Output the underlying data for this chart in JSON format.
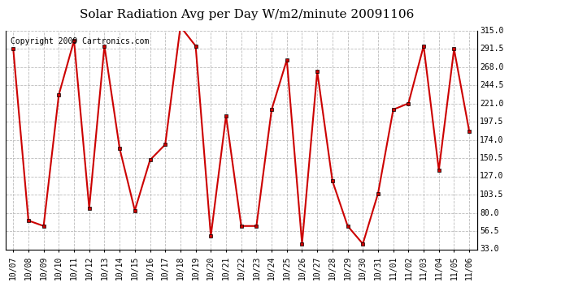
{
  "title": "Solar Radiation Avg per Day W/m2/minute 20091106",
  "copyright": "Copyright 2009 Cartronics.com",
  "dates": [
    "10/07",
    "10/08",
    "10/09",
    "10/10",
    "10/11",
    "10/12",
    "10/13",
    "10/14",
    "10/15",
    "10/16",
    "10/17",
    "10/18",
    "10/19",
    "10/20",
    "10/21",
    "10/22",
    "10/23",
    "10/24",
    "10/25",
    "10/26",
    "10/27",
    "10/28",
    "10/29",
    "10/30",
    "10/31",
    "11/01",
    "11/02",
    "11/03",
    "11/04",
    "11/05",
    "11/06"
  ],
  "values": [
    291.5,
    70.0,
    63.0,
    232.0,
    302.0,
    86.0,
    295.0,
    163.0,
    83.0,
    148.0,
    168.0,
    320.0,
    295.0,
    50.0,
    205.0,
    63.0,
    63.0,
    213.0,
    277.0,
    40.0,
    262.0,
    121.0,
    63.0,
    40.0,
    105.0,
    213.0,
    221.0,
    295.0,
    135.0,
    291.0,
    185.0
  ],
  "yticks": [
    33.0,
    56.5,
    80.0,
    103.5,
    127.0,
    150.5,
    174.0,
    197.5,
    221.0,
    244.5,
    268.0,
    291.5,
    315.0
  ],
  "ylim": [
    33.0,
    315.0
  ],
  "line_color": "#cc0000",
  "marker_color": "#000000",
  "bg_color": "#ffffff",
  "grid_color": "#bbbbbb",
  "title_fontsize": 11,
  "copyright_fontsize": 7,
  "tick_fontsize": 7,
  "ytick_fontsize": 7
}
